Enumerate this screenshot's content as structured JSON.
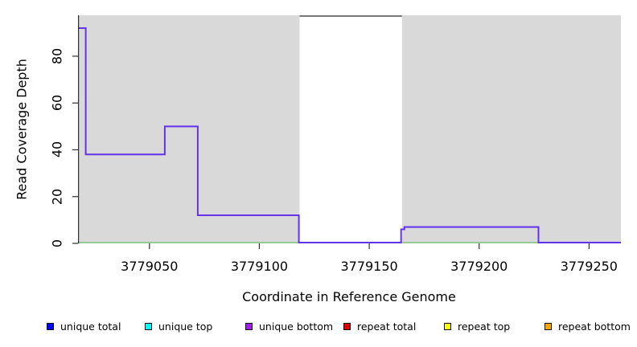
{
  "chart_data": {
    "type": "line",
    "step": "post",
    "title": "",
    "xlabel": "Coordinate in Reference Genome",
    "ylabel": "Read Coverage Depth",
    "xlim": [
      3779017.5,
      3779264.5
    ],
    "ylim": [
      0,
      97.5
    ],
    "x_ticks": [
      3779050,
      3779100,
      3779150,
      3779200,
      3779250
    ],
    "y_ticks": [
      0,
      20,
      40,
      60,
      80
    ],
    "grid": false,
    "legend_position": "bottom",
    "axis_color": "#303030",
    "gap_top_border_color": "#777777",
    "background_regions": [
      {
        "x_start": 3779017.5,
        "x_end": 3779118.3,
        "color": "#D9D9D9"
      },
      {
        "x_start": 3779164.9,
        "x_end": 3779264.5,
        "color": "#D9D9D9"
      }
    ],
    "series": [
      {
        "name": "zero baseline",
        "color": "#7FC47F",
        "width": 1.5,
        "points": [
          [
            3779017.5,
            0
          ],
          [
            3779264.5,
            0
          ]
        ]
      },
      {
        "name": "unique coverage",
        "color": "#6233EA",
        "width": 2,
        "points": [
          [
            3779017.5,
            92
          ],
          [
            3779021,
            38
          ],
          [
            3779057,
            50
          ],
          [
            3779072,
            12
          ],
          [
            3779118,
            0
          ],
          [
            3779164.5,
            6
          ],
          [
            3779166,
            7
          ],
          [
            3779227,
            0
          ],
          [
            3779264.5,
            0
          ]
        ]
      }
    ],
    "legend": [
      {
        "label": "unique total",
        "color": "#0000FF"
      },
      {
        "label": "unique top",
        "color": "#00FFFF"
      },
      {
        "label": "unique bottom",
        "color": "#A020F0"
      },
      {
        "label": "repeat total",
        "color": "#DE0000"
      },
      {
        "label": "repeat top",
        "color": "#FFFF00"
      },
      {
        "label": "repeat bottom",
        "color": "#FFA500"
      }
    ]
  }
}
